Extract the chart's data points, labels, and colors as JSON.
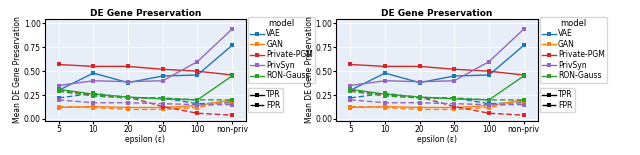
{
  "title": "DE Gene Preservation",
  "xlabel": "epsilon (ε)",
  "ylabel": "Mean DE Gene Preservation",
  "x_labels": [
    "5",
    "10",
    "20",
    "50",
    "100",
    "non-priv"
  ],
  "x_vals": [
    0,
    1,
    2,
    3,
    4,
    5
  ],
  "models": [
    "VAE",
    "GAN",
    "Private-PGM",
    "PrivSyn",
    "RON-Gauss"
  ],
  "colors": {
    "VAE": "#1f77b4",
    "GAN": "#ff7f0e",
    "Private-PGM": "#d62728",
    "PrivSyn": "#9467bd",
    "RON-Gauss": "#2ca02c"
  },
  "tpr": {
    "VAE": [
      0.3,
      0.48,
      0.38,
      0.45,
      0.46,
      0.77
    ],
    "GAN": [
      0.12,
      0.13,
      0.12,
      0.12,
      0.14,
      0.2
    ],
    "Private-PGM": [
      0.57,
      0.55,
      0.55,
      0.52,
      0.5,
      0.46
    ],
    "PrivSyn": [
      0.35,
      0.4,
      0.39,
      0.4,
      0.6,
      0.94
    ],
    "RON-Gauss": [
      0.31,
      0.26,
      0.23,
      0.21,
      0.2,
      0.45
    ]
  },
  "fpr": {
    "VAE": [
      0.22,
      0.27,
      0.22,
      0.22,
      0.16,
      0.17
    ],
    "GAN": [
      0.13,
      0.12,
      0.1,
      0.1,
      0.12,
      0.19
    ],
    "Private-PGM": [
      0.3,
      0.25,
      0.23,
      0.13,
      0.06,
      0.04
    ],
    "PrivSyn": [
      0.2,
      0.17,
      0.17,
      0.16,
      0.15,
      0.15
    ],
    "RON-Gauss": [
      0.29,
      0.24,
      0.22,
      0.22,
      0.2,
      0.2
    ]
  },
  "ylim": [
    -0.02,
    1.05
  ],
  "yticks": [
    0.0,
    0.25,
    0.5,
    0.75,
    1.0
  ],
  "background_color": "#e8eef7",
  "legend_title_fontsize": 6,
  "legend_fontsize": 5.5,
  "title_fontsize": 6.5,
  "axis_label_fontsize": 5.5,
  "tick_fontsize": 5.5,
  "linewidth": 1.0,
  "markersize": 2.5
}
